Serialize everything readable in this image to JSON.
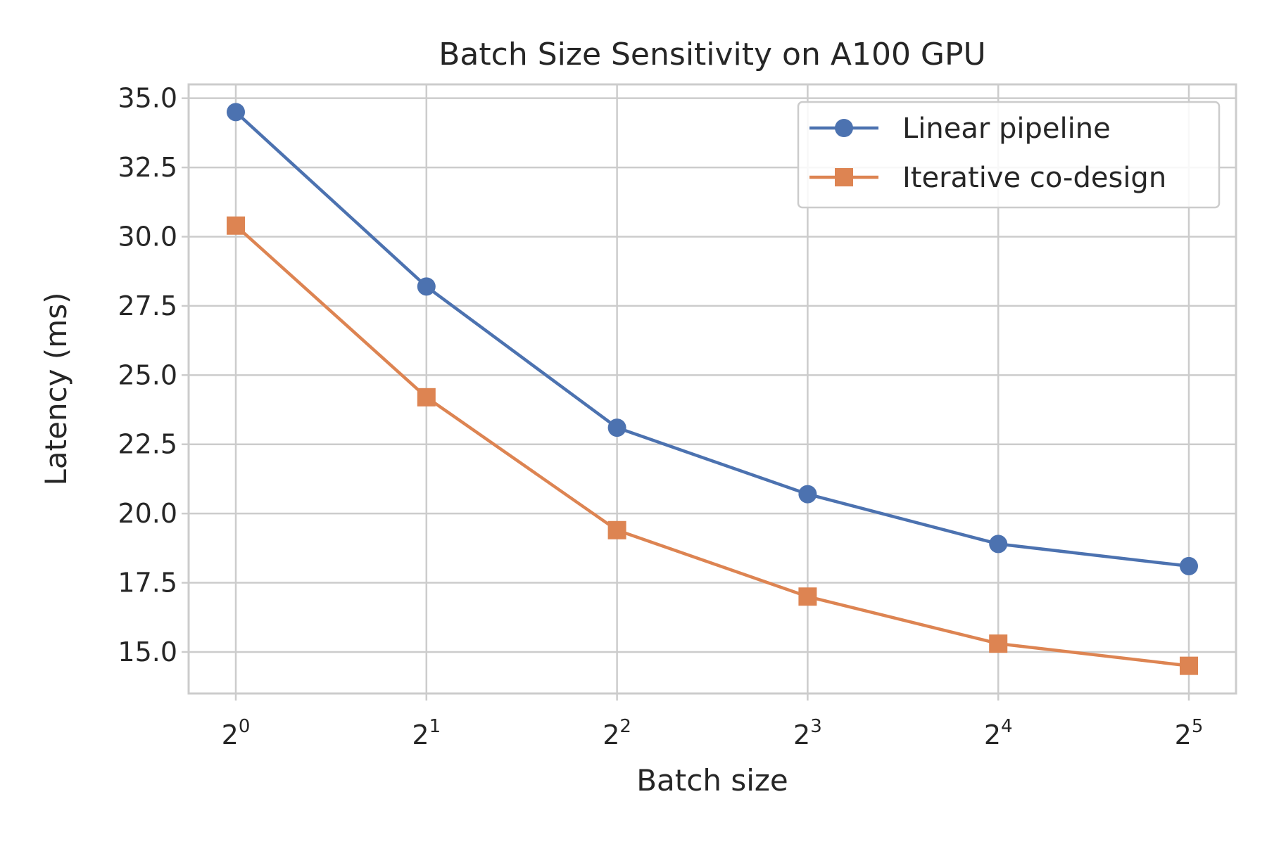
{
  "chart_data": {
    "type": "line",
    "title": "Batch Size Sensitivity on A100 GPU",
    "xlabel": "Batch size",
    "ylabel": "Latency (ms)",
    "x_scale": "log2",
    "x": [
      1,
      2,
      4,
      8,
      16,
      32
    ],
    "x_tick_base": "2",
    "x_tick_exponents": [
      "0",
      "1",
      "2",
      "3",
      "4",
      "5"
    ],
    "y_ticks": [
      "15.0",
      "17.5",
      "20.0",
      "22.5",
      "25.0",
      "27.5",
      "30.0",
      "32.5",
      "35.0"
    ],
    "ylim": [
      13.5,
      35.5
    ],
    "grid": true,
    "legend_position": "top-right",
    "series": [
      {
        "name": "Linear pipeline",
        "color": "#4c72b0",
        "marker": "circle",
        "values": [
          34.5,
          28.2,
          23.1,
          20.7,
          18.9,
          18.1
        ]
      },
      {
        "name": "Iterative co-design",
        "color": "#dd8452",
        "marker": "square",
        "values": [
          30.4,
          24.2,
          19.4,
          17.0,
          15.3,
          14.5
        ]
      }
    ]
  }
}
